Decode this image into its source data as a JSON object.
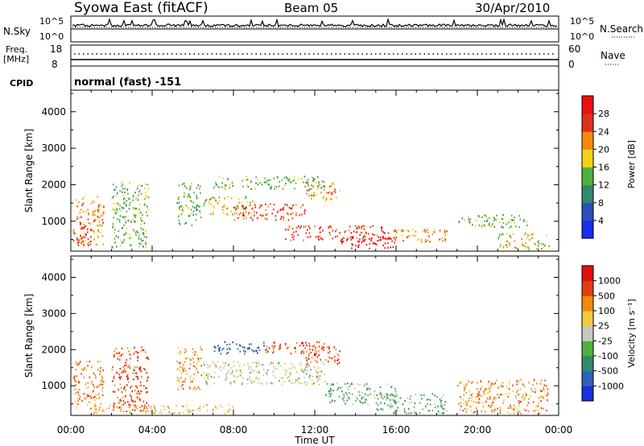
{
  "header": {
    "station": "Syowa East (fitACF)",
    "beam": "Beam 05",
    "date": "30/Apr/2010"
  },
  "strips": {
    "nsky": {
      "label": "N.Sky",
      "ticks": [
        "10^5",
        "10^0"
      ],
      "right_label": "N.Search",
      "right_ticks": [
        "10^5",
        "10^0"
      ]
    },
    "freq": {
      "label": "Freq.",
      "unit": "[MHz]",
      "ticks": [
        "18",
        "8"
      ],
      "right_label": "Nave",
      "right_ticks": [
        "60",
        "0"
      ]
    },
    "cpid": {
      "label": "CPID",
      "text": "normal (fast) -151"
    }
  },
  "x_axis": {
    "label": "Time UT",
    "ticks": [
      "00:00",
      "04:00",
      "08:00",
      "12:00",
      "16:00",
      "20:00",
      "00:00"
    ],
    "range_hours": [
      0,
      24
    ]
  },
  "chart_data": [
    {
      "type": "heatmap",
      "title": "",
      "ylabel": "Slant Range [km]",
      "yticks": [
        1000,
        2000,
        3000,
        4000
      ],
      "ylim": [
        180,
        4590
      ],
      "xlim": [
        0,
        24
      ],
      "colorbar": {
        "label": "Power [dB]",
        "ticks": [
          "4",
          "8",
          "12",
          "16",
          "20",
          "24",
          "28"
        ],
        "colors": [
          "#1a2cf0",
          "#2a4fb8",
          "#2f8a6a",
          "#4fb040",
          "#f2d21a",
          "#f28a10",
          "#e0301a",
          "#ee1010"
        ]
      },
      "echo_regions": [
        {
          "t": [
            0.1,
            1.6
          ],
          "r": [
            350,
            1700
          ],
          "level": 5
        },
        {
          "t": [
            0.3,
            1.0
          ],
          "r": [
            350,
            900
          ],
          "level": 7
        },
        {
          "t": [
            2.0,
            3.8
          ],
          "r": [
            300,
            2100
          ],
          "level": 3
        },
        {
          "t": [
            5.2,
            6.4
          ],
          "r": [
            900,
            2100
          ],
          "level": 3
        },
        {
          "t": [
            6.5,
            9.0
          ],
          "r": [
            1200,
            1700
          ],
          "level": 4
        },
        {
          "t": [
            8.0,
            11.5
          ],
          "r": [
            1050,
            1500
          ],
          "level": 6
        },
        {
          "t": [
            7.0,
            12.5
          ],
          "r": [
            1900,
            2250
          ],
          "level": 3
        },
        {
          "t": [
            11.5,
            13.2
          ],
          "r": [
            1600,
            2100
          ],
          "level": 5
        },
        {
          "t": [
            10.5,
            15.5
          ],
          "r": [
            500,
            900
          ],
          "level": 6
        },
        {
          "t": [
            13.0,
            16.0
          ],
          "r": [
            250,
            600
          ],
          "level": 7
        },
        {
          "t": [
            15.5,
            18.5
          ],
          "r": [
            450,
            800
          ],
          "level": 5
        },
        {
          "t": [
            19.0,
            22.5
          ],
          "r": [
            850,
            1200
          ],
          "level": 3
        },
        {
          "t": [
            21.0,
            23.5
          ],
          "r": [
            250,
            700
          ],
          "level": 4
        }
      ]
    },
    {
      "type": "heatmap",
      "title": "",
      "ylabel": "Slant Range [km]",
      "yticks": [
        1000,
        2000,
        3000,
        4000
      ],
      "ylim": [
        180,
        4590
      ],
      "xlim": [
        0,
        24
      ],
      "colorbar": {
        "label": "Velocity [m s⁻¹]",
        "ticks": [
          "1000",
          "500",
          "100",
          "25",
          "-25",
          "-100",
          "-500",
          "-1000"
        ],
        "colors": [
          "#1830d8",
          "#3060b8",
          "#2f8a6a",
          "#4fb040",
          "#c8c8c0",
          "#f2c840",
          "#f08a10",
          "#e04010",
          "#e01010"
        ]
      },
      "echo_regions": [
        {
          "t": [
            0.1,
            1.6
          ],
          "r": [
            350,
            1700
          ],
          "level": 6
        },
        {
          "t": [
            2.0,
            3.8
          ],
          "r": [
            300,
            2100
          ],
          "level": 7
        },
        {
          "t": [
            5.2,
            6.4
          ],
          "r": [
            900,
            2100
          ],
          "level": 6
        },
        {
          "t": [
            6.5,
            12.5
          ],
          "r": [
            1050,
            1700
          ],
          "level": 4
        },
        {
          "t": [
            7.0,
            9.5
          ],
          "r": [
            1900,
            2250
          ],
          "level": 1
        },
        {
          "t": [
            9.5,
            12.5
          ],
          "r": [
            1900,
            2250
          ],
          "level": 7
        },
        {
          "t": [
            11.5,
            13.2
          ],
          "r": [
            1600,
            2100
          ],
          "level": 7
        },
        {
          "t": [
            12.5,
            16.0
          ],
          "r": [
            500,
            1100
          ],
          "level": 3
        },
        {
          "t": [
            15.0,
            18.5
          ],
          "r": [
            250,
            800
          ],
          "level": 3
        },
        {
          "t": [
            19.0,
            23.5
          ],
          "r": [
            250,
            1200
          ],
          "level": 6
        },
        {
          "t": [
            1.0,
            8.0
          ],
          "r": [
            250,
            500
          ],
          "level": 5
        }
      ]
    }
  ]
}
